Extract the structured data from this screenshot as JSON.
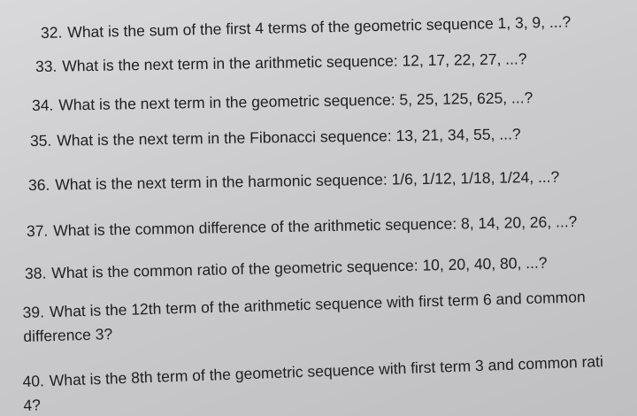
{
  "questions": [
    {
      "number": "32.",
      "lines": [
        "What is the sum of the first 4 terms of the geometric sequence 1, 3, 9, ...?"
      ]
    },
    {
      "number": "33.",
      "lines": [
        "What is the next term in the arithmetic sequence: 12, 17, 22, 27, ...?"
      ]
    },
    {
      "number": "34.",
      "lines": [
        "What is the next term in the geometric sequence: 5, 25, 125, 625, ...?"
      ]
    },
    {
      "number": "35.",
      "lines": [
        "What is the next term in the Fibonacci sequence: 13, 21, 34, 55, ...?"
      ]
    },
    {
      "number": "36.",
      "lines": [
        "What is the next term in the harmonic sequence: 1/6, 1/12, 1/18, 1/24, ...?"
      ]
    },
    {
      "number": "37.",
      "lines": [
        "What is the common difference of the arithmetic sequence: 8, 14, 20, 26, ...?"
      ]
    },
    {
      "number": "38.",
      "lines": [
        "What is the common ratio of the geometric sequence: 10, 20, 40, 80, ...?"
      ]
    },
    {
      "number": "39.",
      "lines": [
        "What is the 12th term of the arithmetic sequence with first term 6 and common",
        "difference 3?"
      ]
    },
    {
      "number": "40.",
      "lines": [
        "What is the 8th term of the geometric sequence with first term 3 and common rati",
        "4?"
      ]
    }
  ]
}
